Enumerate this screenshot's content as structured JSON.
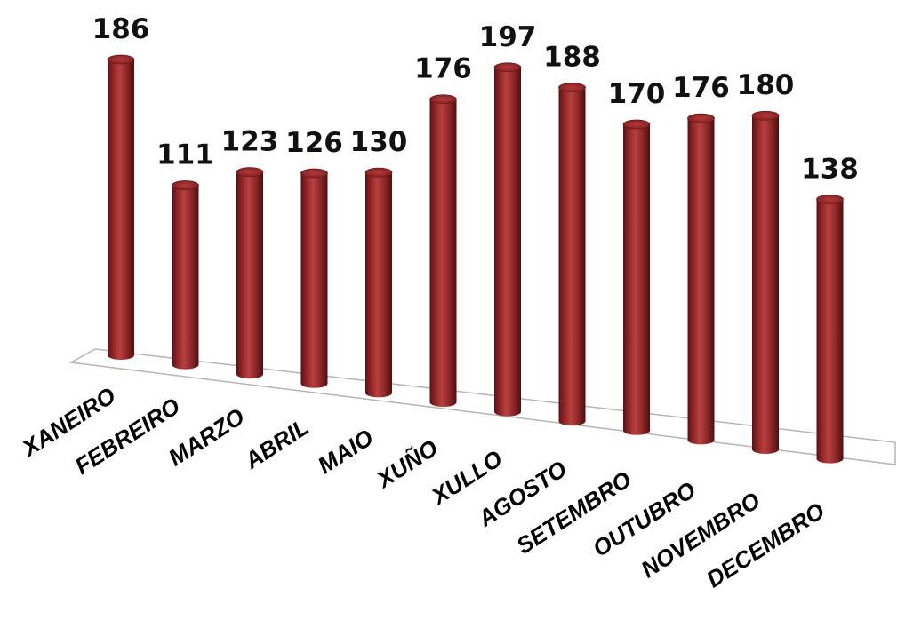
{
  "chart_data": {
    "type": "bar",
    "categories": [
      "XANEIRO",
      "FEBREIRO",
      "MARZO",
      "ABRIL",
      "MAIO",
      "XUÑO",
      "XULLO",
      "AGOSTO",
      "SETEMBRO",
      "OUTUBRO",
      "NOVEMBRO",
      "DECEMBRO"
    ],
    "values": [
      186,
      111,
      123,
      126,
      130,
      176,
      197,
      188,
      170,
      176,
      180,
      138
    ],
    "bar_color": "#9e2a2b",
    "bar_style": "3d-cylinder",
    "grid": false,
    "legend": false
  }
}
